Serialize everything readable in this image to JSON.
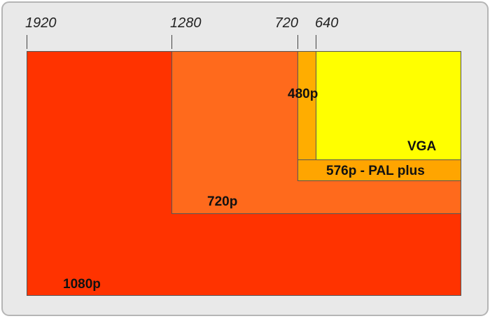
{
  "ticks": [
    "1920",
    "1280",
    "720",
    "640"
  ],
  "regions": [
    {
      "label": "1080p"
    },
    {
      "label": "720p"
    },
    {
      "label": "576p - PAL plus"
    },
    {
      "label": "480p"
    },
    {
      "label": "VGA"
    }
  ]
}
